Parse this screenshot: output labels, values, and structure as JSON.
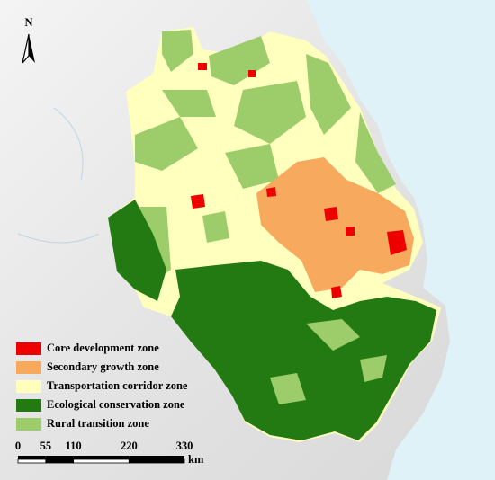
{
  "north_label": "N",
  "legend": {
    "items": [
      {
        "label": "Core development zone",
        "color": "#ee0000"
      },
      {
        "label": "Secondary growth zone",
        "color": "#f7a95e"
      },
      {
        "label": "Transportation corridor zone",
        "color": "#ffffbe"
      },
      {
        "label": "Ecological conservation zone",
        "color": "#237a12"
      },
      {
        "label": "Rural transition zone",
        "color": "#9ccd6a"
      }
    ]
  },
  "scale_bar": {
    "ticks": [
      0,
      55,
      110,
      220,
      330
    ],
    "unit": "km"
  }
}
